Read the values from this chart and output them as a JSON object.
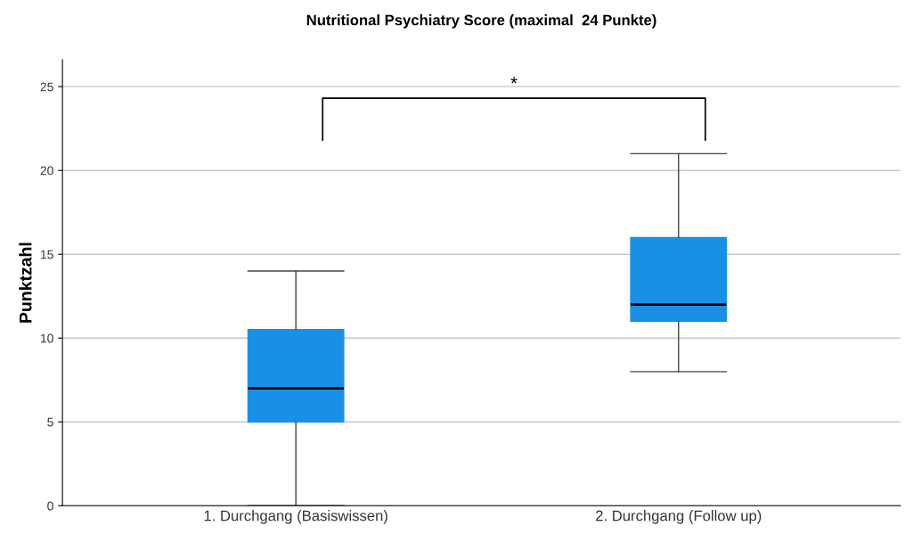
{
  "chart_data": {
    "type": "box",
    "title": "Nutritional Psychiatry Score (maximal  24 Punkte)",
    "ylabel": "Punktzahl",
    "categories": [
      "1. Durchgang (Basiswissen)",
      "2. Durchgang (Follow up)"
    ],
    "series": [
      {
        "color": "#1790e6",
        "boxes": [
          {
            "low": 0,
            "q1": 5,
            "median": 7,
            "q3": 10.5,
            "high": 14
          },
          {
            "low": 8,
            "q1": 11,
            "median": 12,
            "q3": 16,
            "high": 21
          }
        ]
      }
    ],
    "ylim": [
      0,
      26.6
    ],
    "yticks": [
      0,
      5,
      10,
      15,
      20,
      25
    ],
    "grid": "y",
    "annotations": [
      "*"
    ]
  }
}
